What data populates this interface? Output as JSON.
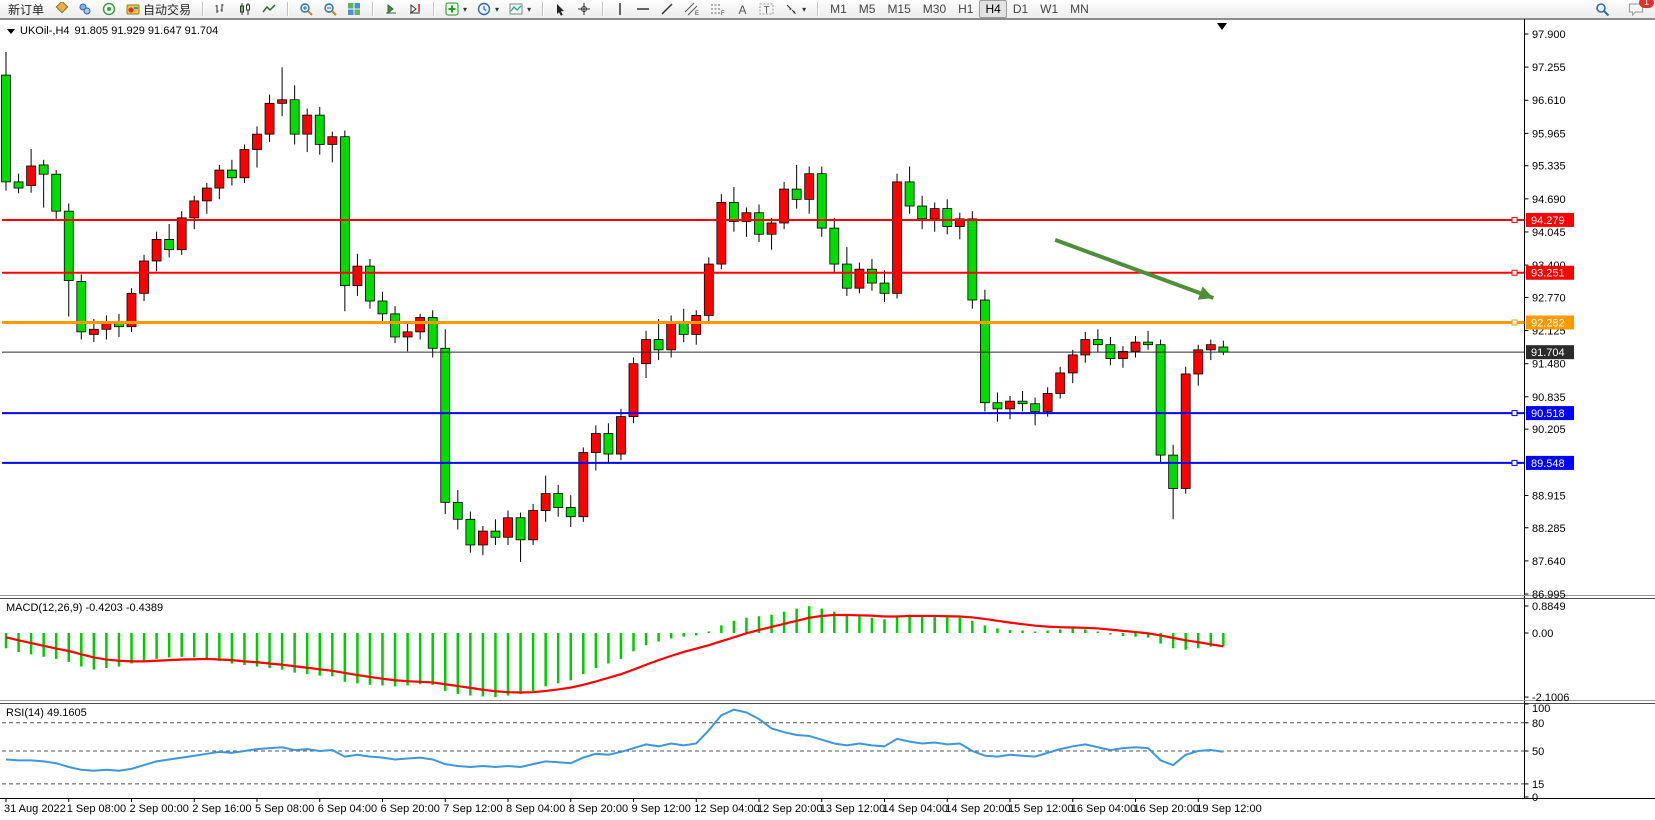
{
  "toolbar": {
    "new_order_label": "新订单",
    "autotrading_label": "自动交易",
    "timeframes": [
      "M1",
      "M5",
      "M15",
      "M30",
      "H1",
      "H4",
      "D1",
      "W1",
      "MN"
    ],
    "active_timeframe": "H4",
    "notification_badge": "1"
  },
  "chart": {
    "symbol_title": "UKOil-,H4",
    "ohlc_text": "91.805 91.929 91.647 91.704"
  },
  "indicators": {
    "macd_label": "MACD(12,26,9) -0.4203 -0.4389",
    "rsi_label": "RSI(14) 49.1605"
  },
  "chart_data": [
    {
      "type": "candlestick",
      "title": "UKOil-,H4",
      "current_ohlc": {
        "open": 91.805,
        "high": 91.929,
        "low": 91.647,
        "close": 91.704
      },
      "up_color": "#FF0000",
      "down_color": "#00DC00",
      "ylim": [
        86.995,
        97.9
      ],
      "y_ticks": [
        97.9,
        97.255,
        96.61,
        95.965,
        95.335,
        94.69,
        94.045,
        93.4,
        92.77,
        92.125,
        91.48,
        90.835,
        90.205,
        88.915,
        88.285,
        87.64,
        86.995
      ],
      "price_lines": [
        {
          "price": 94.279,
          "color": "#FF0000",
          "width": 2
        },
        {
          "price": 93.251,
          "color": "#FF0000",
          "width": 2
        },
        {
          "price": 92.282,
          "color": "#FF9900",
          "width": 3
        },
        {
          "price": 91.704,
          "color": "#2b2b2b",
          "width": 1
        },
        {
          "price": 90.518,
          "color": "#0000FF",
          "width": 2
        },
        {
          "price": 89.548,
          "color": "#0000FF",
          "width": 2
        }
      ],
      "trend_arrow": {
        "from_bar": 83.6,
        "from_price": 93.89,
        "to_bar": 96.2,
        "to_price": 92.76,
        "color": "#4e8f3a"
      },
      "bars_per_label": 5,
      "time_labels": [
        "31 Aug 2022",
        "1 Sep 08:00",
        "2 Sep 00:00",
        "2 Sep 16:00",
        "5 Sep 08:00",
        "6 Sep 04:00",
        "6 Sep 20:00",
        "7 Sep 12:00",
        "8 Sep 04:00",
        "8 Sep 20:00",
        "9 Sep 12:00",
        "12 Sep 04:00",
        "12 Sep 20:00",
        "13 Sep 12:00",
        "14 Sep 04:00",
        "14 Sep 20:00",
        "15 Sep 12:00",
        "16 Sep 04:00",
        "16 Sep 20:00",
        "19 Sep 12:00"
      ],
      "candles": [
        [
          97.1,
          97.55,
          94.85,
          95.02
        ],
        [
          95.02,
          95.18,
          94.8,
          94.9
        ],
        [
          94.95,
          95.66,
          94.81,
          95.33
        ],
        [
          95.35,
          95.45,
          94.52,
          95.17
        ],
        [
          95.17,
          95.25,
          94.3,
          94.45
        ],
        [
          94.45,
          94.6,
          92.4,
          93.1
        ],
        [
          93.08,
          93.22,
          91.95,
          92.1
        ],
        [
          92.05,
          92.35,
          91.9,
          92.15
        ],
        [
          92.15,
          92.42,
          91.95,
          92.3
        ],
        [
          92.28,
          92.45,
          92.0,
          92.2
        ],
        [
          92.2,
          92.95,
          92.1,
          92.85
        ],
        [
          92.85,
          93.6,
          92.7,
          93.48
        ],
        [
          93.48,
          94.05,
          93.28,
          93.9
        ],
        [
          93.9,
          94.2,
          93.55,
          93.7
        ],
        [
          93.7,
          94.45,
          93.6,
          94.32
        ],
        [
          94.32,
          94.75,
          94.1,
          94.65
        ],
        [
          94.65,
          95.0,
          94.4,
          94.9
        ],
        [
          94.9,
          95.35,
          94.68,
          95.25
        ],
        [
          95.25,
          95.45,
          94.95,
          95.1
        ],
        [
          95.1,
          95.75,
          95.0,
          95.65
        ],
        [
          95.65,
          96.1,
          95.3,
          95.95
        ],
        [
          95.95,
          96.72,
          95.8,
          96.55
        ],
        [
          96.55,
          97.25,
          96.3,
          96.62
        ],
        [
          96.62,
          96.9,
          95.75,
          95.95
        ],
        [
          95.95,
          96.45,
          95.6,
          96.32
        ],
        [
          96.32,
          96.48,
          95.55,
          95.75
        ],
        [
          95.75,
          96.0,
          95.4,
          95.9
        ],
        [
          95.9,
          96.02,
          92.5,
          93.0
        ],
        [
          93.0,
          93.62,
          92.8,
          93.38
        ],
        [
          93.38,
          93.52,
          92.55,
          92.7
        ],
        [
          92.7,
          92.88,
          92.28,
          92.45
        ],
        [
          92.45,
          92.6,
          91.88,
          92.0
        ],
        [
          92.0,
          92.28,
          91.72,
          92.1
        ],
        [
          92.1,
          92.45,
          91.95,
          92.38
        ],
        [
          92.38,
          92.52,
          91.6,
          91.78
        ],
        [
          91.78,
          92.15,
          88.55,
          88.78
        ],
        [
          88.78,
          89.02,
          88.25,
          88.45
        ],
        [
          88.45,
          88.6,
          87.8,
          87.95
        ],
        [
          87.95,
          88.32,
          87.75,
          88.22
        ],
        [
          88.22,
          88.45,
          87.95,
          88.1
        ],
        [
          88.1,
          88.62,
          87.95,
          88.48
        ],
        [
          88.48,
          88.58,
          87.62,
          88.05
        ],
        [
          88.05,
          88.75,
          87.95,
          88.62
        ],
        [
          88.62,
          89.3,
          88.4,
          88.95
        ],
        [
          88.95,
          89.12,
          88.5,
          88.68
        ],
        [
          88.68,
          88.92,
          88.3,
          88.5
        ],
        [
          88.5,
          89.85,
          88.4,
          89.75
        ],
        [
          89.75,
          90.28,
          89.4,
          90.12
        ],
        [
          90.12,
          90.32,
          89.55,
          89.72
        ],
        [
          89.72,
          90.6,
          89.6,
          90.45
        ],
        [
          90.45,
          91.6,
          90.32,
          91.48
        ],
        [
          91.48,
          92.12,
          91.2,
          91.95
        ],
        [
          91.95,
          92.35,
          91.55,
          91.75
        ],
        [
          91.75,
          92.42,
          91.6,
          92.28
        ],
        [
          92.28,
          92.55,
          91.9,
          92.05
        ],
        [
          92.05,
          92.52,
          91.85,
          92.42
        ],
        [
          92.42,
          93.55,
          92.3,
          93.42
        ],
        [
          93.42,
          94.78,
          93.32,
          94.62
        ],
        [
          94.62,
          94.92,
          94.05,
          94.25
        ],
        [
          94.25,
          94.52,
          93.95,
          94.42
        ],
        [
          94.42,
          94.58,
          93.85,
          94.0
        ],
        [
          94.0,
          94.32,
          93.7,
          94.22
        ],
        [
          94.22,
          95.02,
          94.1,
          94.88
        ],
        [
          94.88,
          95.35,
          94.5,
          94.68
        ],
        [
          94.68,
          95.32,
          94.4,
          95.18
        ],
        [
          95.18,
          95.32,
          93.95,
          94.12
        ],
        [
          94.12,
          94.32,
          93.25,
          93.42
        ],
        [
          93.42,
          93.75,
          92.8,
          92.95
        ],
        [
          92.95,
          93.45,
          92.85,
          93.32
        ],
        [
          93.32,
          93.52,
          92.9,
          93.05
        ],
        [
          93.05,
          93.3,
          92.68,
          92.85
        ],
        [
          92.85,
          95.18,
          92.75,
          95.02
        ],
        [
          95.02,
          95.32,
          94.4,
          94.55
        ],
        [
          94.55,
          94.75,
          94.1,
          94.3
        ],
        [
          94.3,
          94.62,
          94.05,
          94.5
        ],
        [
          94.5,
          94.68,
          94.0,
          94.15
        ],
        [
          94.15,
          94.42,
          93.9,
          94.3
        ],
        [
          94.3,
          94.45,
          92.55,
          92.72
        ],
        [
          92.72,
          92.92,
          90.55,
          90.72
        ],
        [
          90.72,
          90.92,
          90.35,
          90.6
        ],
        [
          90.6,
          90.85,
          90.4,
          90.75
        ],
        [
          90.75,
          90.95,
          90.55,
          90.7
        ],
        [
          90.7,
          90.82,
          90.28,
          90.55
        ],
        [
          90.55,
          91.02,
          90.45,
          90.9
        ],
        [
          90.9,
          91.42,
          90.8,
          91.3
        ],
        [
          91.3,
          91.75,
          91.1,
          91.65
        ],
        [
          91.65,
          92.1,
          91.5,
          91.95
        ],
        [
          91.95,
          92.15,
          91.7,
          91.85
        ],
        [
          91.85,
          92.0,
          91.45,
          91.58
        ],
        [
          91.58,
          91.82,
          91.4,
          91.72
        ],
        [
          91.72,
          92.02,
          91.6,
          91.9
        ],
        [
          91.9,
          92.12,
          91.75,
          91.85
        ],
        [
          91.85,
          91.95,
          89.55,
          89.7
        ],
        [
          89.7,
          89.9,
          88.45,
          89.05
        ],
        [
          89.05,
          91.42,
          88.95,
          91.28
        ],
        [
          91.28,
          91.85,
          91.05,
          91.75
        ],
        [
          91.75,
          91.95,
          91.55,
          91.85
        ],
        [
          91.805,
          91.929,
          91.647,
          91.704
        ]
      ]
    },
    {
      "type": "bar",
      "name": "MACD",
      "settings": "(12,26,9)",
      "current_values": [
        -0.4203,
        -0.4389
      ],
      "ylim": [
        -2.1006,
        0.8849
      ],
      "y_ticks": [
        {
          "value": 0.8849,
          "label": "0.8849"
        },
        {
          "value": 0,
          "label": "0.00"
        },
        {
          "value": -2.1006,
          "label": "-2.1006"
        }
      ],
      "histogram_color": "#00CC00",
      "signal_color": "#FF0000",
      "histogram": [
        -0.5,
        -0.62,
        -0.7,
        -0.78,
        -0.85,
        -0.95,
        -1.1,
        -1.2,
        -1.15,
        -1.1,
        -1.0,
        -0.92,
        -0.85,
        -0.8,
        -0.78,
        -0.8,
        -0.85,
        -0.92,
        -1.0,
        -1.05,
        -1.1,
        -1.15,
        -1.2,
        -1.3,
        -1.35,
        -1.4,
        -1.42,
        -1.6,
        -1.65,
        -1.7,
        -1.72,
        -1.75,
        -1.72,
        -1.68,
        -1.7,
        -1.9,
        -2.0,
        -2.05,
        -2.08,
        -2.1,
        -2.05,
        -2.0,
        -1.9,
        -1.75,
        -1.65,
        -1.55,
        -1.35,
        -1.15,
        -1.0,
        -0.85,
        -0.6,
        -0.4,
        -0.28,
        -0.18,
        -0.12,
        -0.08,
        0.05,
        0.25,
        0.4,
        0.5,
        0.55,
        0.6,
        0.7,
        0.8,
        0.88,
        0.8,
        0.7,
        0.6,
        0.55,
        0.5,
        0.45,
        0.55,
        0.6,
        0.58,
        0.55,
        0.52,
        0.5,
        0.4,
        0.25,
        0.15,
        0.1,
        0.08,
        0.05,
        0.08,
        0.12,
        0.15,
        0.12,
        0.05,
        -0.05,
        -0.1,
        -0.12,
        -0.15,
        -0.35,
        -0.5,
        -0.55,
        -0.5,
        -0.45,
        -0.4203
      ],
      "signal": [
        -0.14,
        -0.24,
        -0.33,
        -0.42,
        -0.51,
        -0.59,
        -0.7,
        -0.8,
        -0.87,
        -0.91,
        -0.93,
        -0.93,
        -0.91,
        -0.89,
        -0.87,
        -0.86,
        -0.85,
        -0.87,
        -0.89,
        -0.93,
        -0.96,
        -1.0,
        -1.04,
        -1.09,
        -1.14,
        -1.19,
        -1.24,
        -1.31,
        -1.38,
        -1.44,
        -1.5,
        -1.55,
        -1.58,
        -1.6,
        -1.62,
        -1.68,
        -1.74,
        -1.8,
        -1.86,
        -1.91,
        -1.94,
        -1.95,
        -1.94,
        -1.9,
        -1.85,
        -1.79,
        -1.7,
        -1.59,
        -1.47,
        -1.35,
        -1.2,
        -1.04,
        -0.89,
        -0.75,
        -0.62,
        -0.51,
        -0.4,
        -0.27,
        -0.14,
        -0.01,
        0.1,
        0.2,
        0.3,
        0.4,
        0.5,
        0.56,
        0.59,
        0.59,
        0.58,
        0.57,
        0.54,
        0.54,
        0.56,
        0.56,
        0.56,
        0.55,
        0.54,
        0.51,
        0.46,
        0.4,
        0.34,
        0.29,
        0.24,
        0.21,
        0.19,
        0.18,
        0.17,
        0.15,
        0.11,
        0.07,
        0.03,
        -0.01,
        -0.08,
        -0.16,
        -0.24,
        -0.3,
        -0.37,
        -0.4389
      ]
    },
    {
      "type": "line",
      "name": "RSI",
      "settings": "(14)",
      "current_value": 49.1605,
      "levels": [
        80,
        50,
        15
      ],
      "y_ticks": [
        "100",
        "80",
        "50",
        "15",
        "0"
      ],
      "line_color": "#3E96E0",
      "values": [
        41,
        40,
        40,
        39,
        37,
        33,
        30,
        29,
        30,
        29,
        31,
        35,
        39,
        41,
        43,
        45,
        47,
        49,
        48,
        50,
        52,
        53,
        54,
        51,
        52,
        50,
        51,
        44,
        46,
        44,
        43,
        41,
        42,
        43,
        41,
        36,
        34,
        33,
        34,
        33,
        34,
        33,
        36,
        39,
        38,
        37,
        43,
        47,
        46,
        49,
        53,
        57,
        55,
        58,
        56,
        58,
        72,
        88,
        94,
        91,
        84,
        74,
        70,
        67,
        66,
        62,
        58,
        56,
        58,
        56,
        55,
        63,
        60,
        58,
        59,
        57,
        58,
        50,
        45,
        44,
        46,
        45,
        44,
        48,
        52,
        55,
        57,
        54,
        51,
        53,
        54,
        53,
        40,
        35,
        46,
        50,
        51,
        49.16
      ]
    }
  ]
}
